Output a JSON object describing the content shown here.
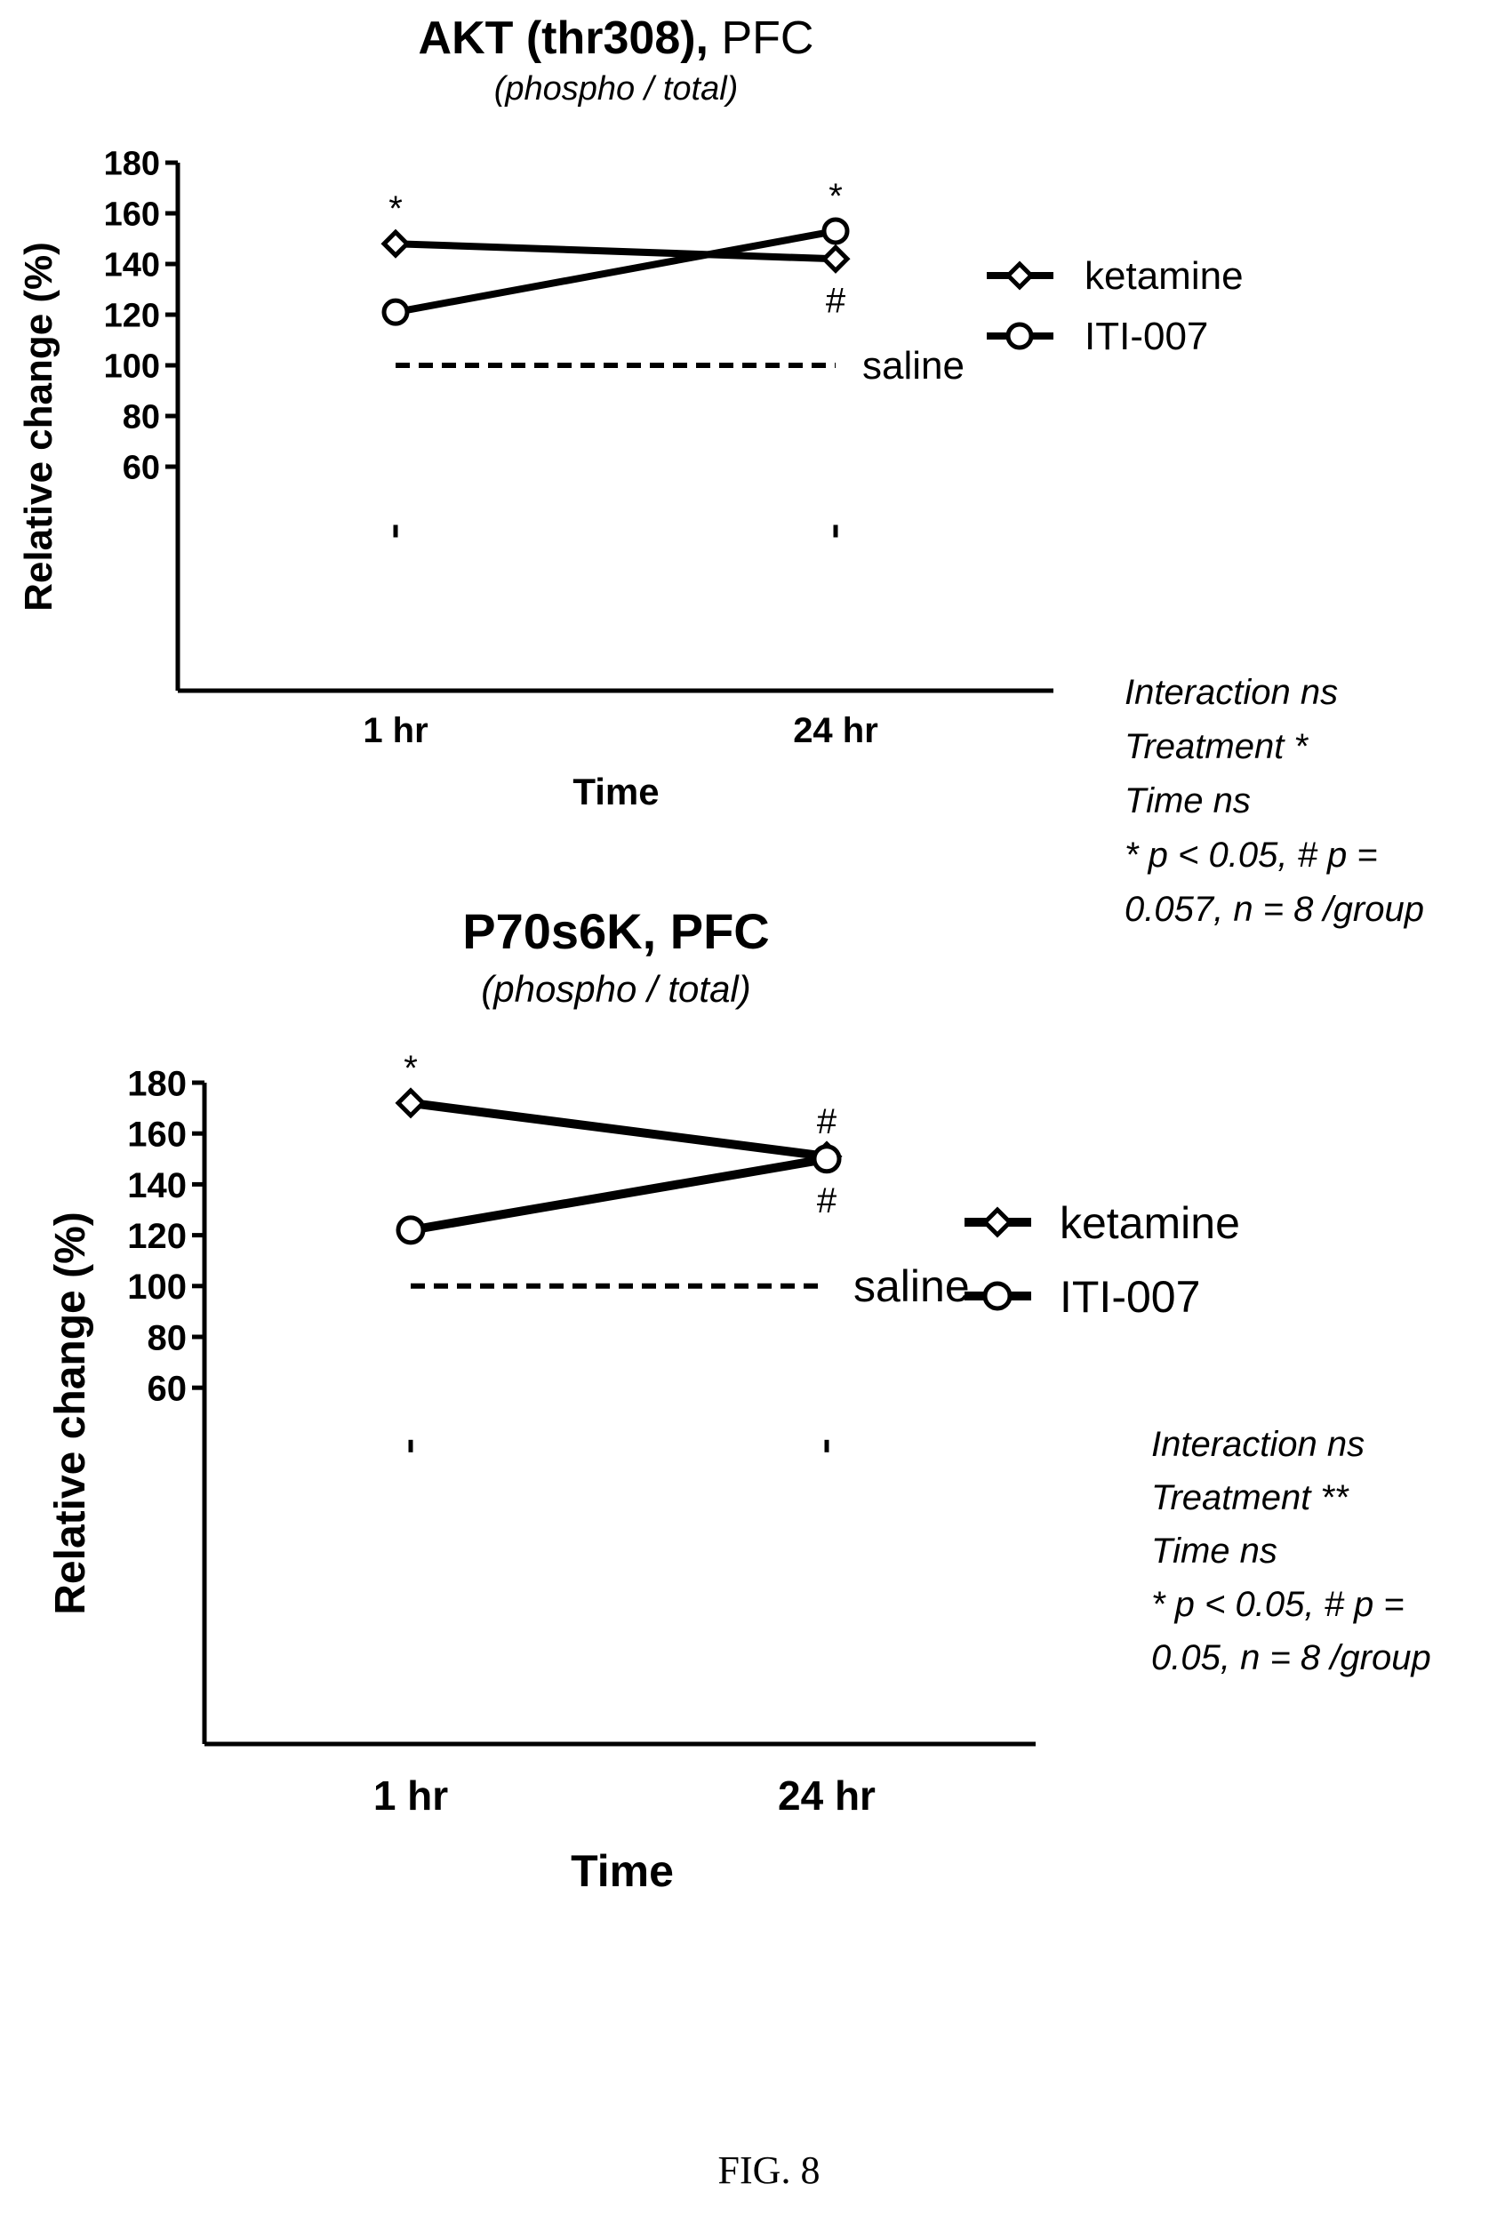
{
  "figure_caption": "FIG. 8",
  "chart_data": [
    {
      "type": "line",
      "title_bold": "AKT (thr308),",
      "title_rest": " PFC",
      "subtitle": "(phospho / total)",
      "xlabel": "Time",
      "ylabel": "Relative change (%)",
      "categories": [
        "1 hr",
        "24 hr"
      ],
      "ylim": [
        50,
        180
      ],
      "yticks": [
        60,
        80,
        100,
        120,
        140,
        160,
        180
      ],
      "series": [
        {
          "name": "ketamine",
          "marker": "diamond",
          "values": [
            148,
            142
          ],
          "annotations": [
            "*",
            "#"
          ]
        },
        {
          "name": "ITI-007",
          "marker": "circle",
          "values": [
            121,
            153
          ],
          "annotations": [
            "",
            "*"
          ]
        }
      ],
      "reference_line": {
        "name": "saline",
        "value": 100
      },
      "stats": [
        "Interaction ns",
        "Treatment *",
        "Time ns",
        "* p < 0.05, # p =",
        "0.057, n = 8 /group"
      ]
    },
    {
      "type": "line",
      "title_bold": "P70s6K, PFC",
      "title_rest": "",
      "subtitle": "(phospho / total)",
      "xlabel": "Time",
      "ylabel": "Relative change (%)",
      "categories": [
        "1 hr",
        "24 hr"
      ],
      "ylim": [
        50,
        180
      ],
      "yticks": [
        60,
        80,
        100,
        120,
        140,
        160,
        180
      ],
      "series": [
        {
          "name": "ketamine",
          "marker": "diamond",
          "values": [
            172,
            151
          ],
          "annotations": [
            "*",
            "#"
          ]
        },
        {
          "name": "ITI-007",
          "marker": "circle",
          "values": [
            122,
            150
          ],
          "annotations": [
            "",
            "#"
          ]
        }
      ],
      "reference_line": {
        "name": "saline",
        "value": 100
      },
      "stats": [
        "Interaction ns",
        "Treatment **",
        "Time ns",
        "* p < 0.05, # p =",
        "0.05, n = 8 /group"
      ]
    }
  ]
}
